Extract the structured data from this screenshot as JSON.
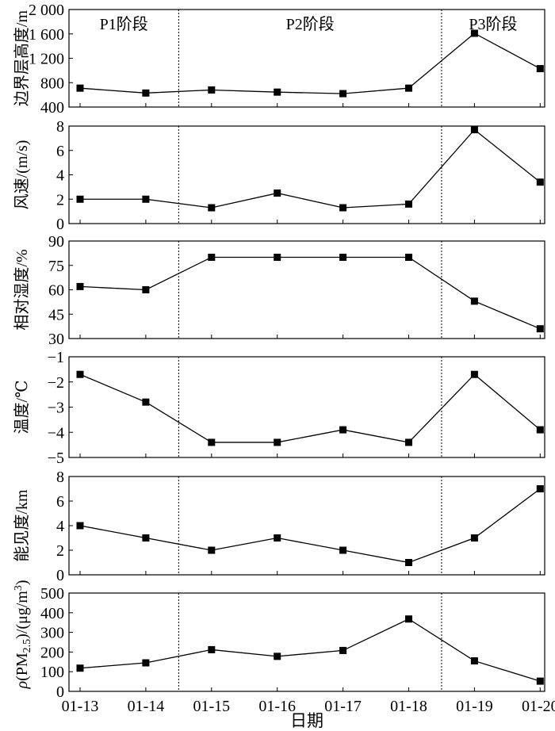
{
  "chart_data": {
    "type": "line",
    "categories": [
      "01-13",
      "01-14",
      "01-15",
      "01-16",
      "01-17",
      "01-18",
      "01-19",
      "01-20"
    ],
    "xlabel": "日期",
    "phase_labels": [
      "P1阶段",
      "P2阶段",
      "P3阶段"
    ],
    "phase_boundaries_after_index": [
      1,
      5
    ],
    "panels": [
      {
        "key": "blh",
        "ylabel": "边界层高度/m",
        "ylim": [
          400,
          2000
        ],
        "yticks": [
          400,
          800,
          1200,
          1600,
          2000
        ],
        "yticklabels": [
          "400",
          "800",
          "1 200",
          "1 600",
          "2 000"
        ],
        "values": [
          710,
          630,
          680,
          645,
          620,
          710,
          1610,
          1030
        ]
      },
      {
        "key": "wind",
        "ylabel": "风速/(m/s)",
        "ylim": [
          0,
          8
        ],
        "yticks": [
          0,
          2,
          4,
          6,
          8
        ],
        "yticklabels": [
          "0",
          "2",
          "4",
          "6",
          "8"
        ],
        "values": [
          2.0,
          2.0,
          1.3,
          2.5,
          1.3,
          1.6,
          7.7,
          3.4
        ]
      },
      {
        "key": "rh",
        "ylabel": "相对湿度/%",
        "ylim": [
          30,
          90
        ],
        "yticks": [
          30,
          45,
          60,
          75,
          90
        ],
        "yticklabels": [
          "30",
          "45",
          "60",
          "75",
          "90"
        ],
        "values": [
          62,
          60,
          80,
          80,
          80,
          80,
          53,
          36
        ]
      },
      {
        "key": "temp",
        "ylabel": "温度/℃",
        "ylim": [
          -5,
          -1
        ],
        "yticks": [
          -5,
          -4,
          -3,
          -2,
          -1
        ],
        "yticklabels": [
          "−5",
          "−4",
          "−3",
          "−2",
          "−1"
        ],
        "values": [
          -1.7,
          -2.8,
          -4.4,
          -4.4,
          -3.9,
          -4.4,
          -1.7,
          -3.9
        ]
      },
      {
        "key": "vis",
        "ylabel": "能见度/km",
        "ylim": [
          0,
          8
        ],
        "yticks": [
          0,
          2,
          4,
          6,
          8
        ],
        "yticklabels": [
          "0",
          "2",
          "4",
          "6",
          "8"
        ],
        "values": [
          4,
          3,
          2,
          3,
          2,
          1,
          3,
          7
        ]
      },
      {
        "key": "pm25",
        "ylabel": "ρ(PM2.5)/(μg/m3)",
        "ylim": [
          0,
          500
        ],
        "yticks": [
          0,
          100,
          200,
          300,
          400,
          500
        ],
        "yticklabels": [
          "0",
          "100",
          "200",
          "300",
          "400",
          "500"
        ],
        "values": [
          118,
          145,
          212,
          178,
          208,
          368,
          155,
          52
        ]
      }
    ]
  }
}
